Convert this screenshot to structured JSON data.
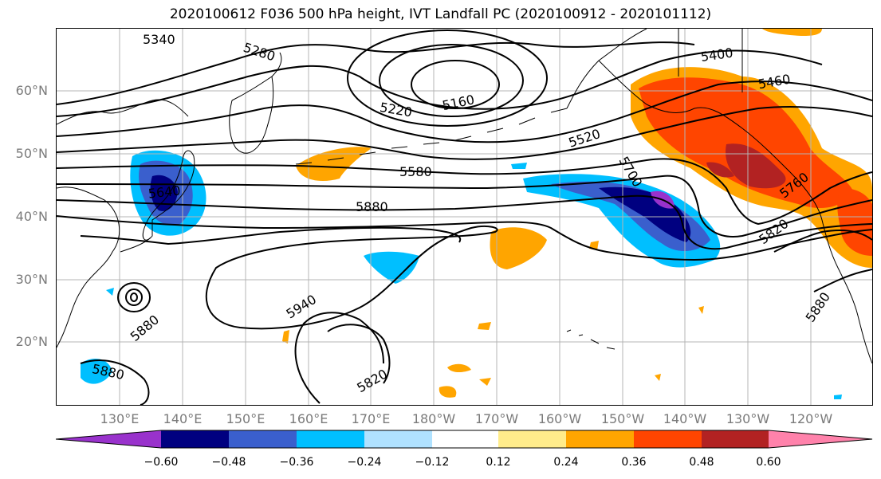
{
  "title": "2020100612 F036 500 hPa height, IVT Landfall PC (2020100912 - 2020101112)",
  "lat_labels": [
    "60°N",
    "50°N",
    "40°N",
    "30°N",
    "20°N"
  ],
  "lon_labels": [
    "130°E",
    "140°E",
    "150°E",
    "160°E",
    "170°E",
    "180°W",
    "170°W",
    "160°W",
    "150°W",
    "140°W",
    "130°W",
    "120°W"
  ],
  "contour_labels": [
    "5340",
    "5280",
    "5220",
    "5160",
    "5400",
    "5460",
    "5520",
    "5580",
    "5640",
    "5700",
    "5760",
    "5820",
    "5880",
    "5940",
    "5880",
    "5880",
    "5820",
    "5880"
  ],
  "colorbar": {
    "ticks": [
      "−0.60",
      "−0.48",
      "−0.36",
      "−0.24",
      "−0.12",
      "0.12",
      "0.24",
      "0.36",
      "0.48",
      "0.60"
    ],
    "colors": [
      "#9932cc",
      "#000080",
      "#3a5fcd",
      "#00bfff",
      "#b0e2ff",
      "#ffffff",
      "#ffec8b",
      "#ffa500",
      "#ff4500",
      "#b22222",
      "#ff82ab"
    ]
  },
  "palette": {
    "neg_strong": "#000080",
    "neg_mid": "#3a5fcd",
    "neg_light": "#00bfff",
    "neg_faint": "#b0e2ff",
    "pos_faint": "#ffec8b",
    "pos_mid": "#ffa500",
    "pos_strong": "#ff4500",
    "pos_max": "#b22222",
    "neg_max": "#9932cc"
  }
}
